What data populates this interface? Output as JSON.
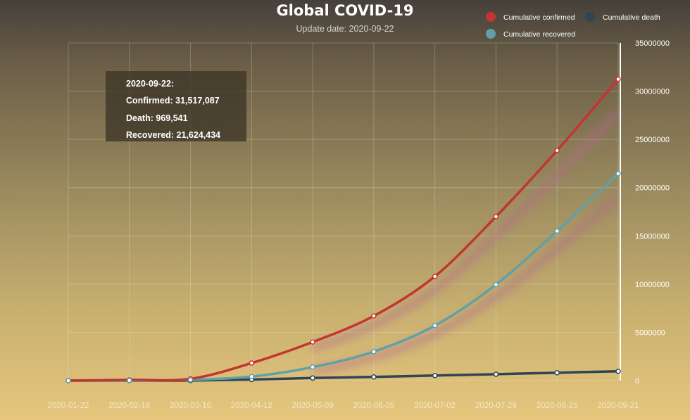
{
  "title": "Global COVID-19",
  "subtitle": "Update date:  2020-09-22",
  "legend": {
    "items": [
      {
        "label": "Cumulative confirmed",
        "color": "#c23531"
      },
      {
        "label": "Cumulative death",
        "color": "#2f4554"
      },
      {
        "label": "Cumulative recovered",
        "color": "#61a0a8"
      }
    ]
  },
  "tooltip": {
    "date": "2020-09-22:",
    "confirmed": "Confirmed:  31,517,087",
    "death": "Death:  969,541",
    "recovered": "Recovered:  21,624,434"
  },
  "chart_data": {
    "type": "line",
    "x": [
      "2020-01-22",
      "2020-02-18",
      "2020-03-16",
      "2020-04-12",
      "2020-05-09",
      "2020-06-05",
      "2020-07-02",
      "2020-07-29",
      "2020-08-25",
      "2020-09-21"
    ],
    "ylim": [
      0,
      35000000
    ],
    "yticks": [
      0,
      5000000,
      10000000,
      15000000,
      20000000,
      25000000,
      30000000,
      35000000
    ],
    "grid": true,
    "legend_position": "top-right",
    "series": [
      {
        "name": "Cumulative confirmed",
        "color": "#c23531",
        "values": [
          560,
          75200,
          182000,
          1820000,
          4000000,
          6700000,
          10800000,
          17000000,
          23850000,
          31240000
        ]
      },
      {
        "name": "Cumulative death",
        "color": "#2f4554",
        "values": [
          17,
          2000,
          6600,
          113000,
          270000,
          380000,
          525000,
          665000,
          815000,
          965000
        ]
      },
      {
        "name": "Cumulative recovered",
        "color": "#61a0a8",
        "values": [
          28,
          15000,
          80000,
          420000,
          1400000,
          3000000,
          5700000,
          9950000,
          15500000,
          21450000
        ]
      }
    ]
  }
}
